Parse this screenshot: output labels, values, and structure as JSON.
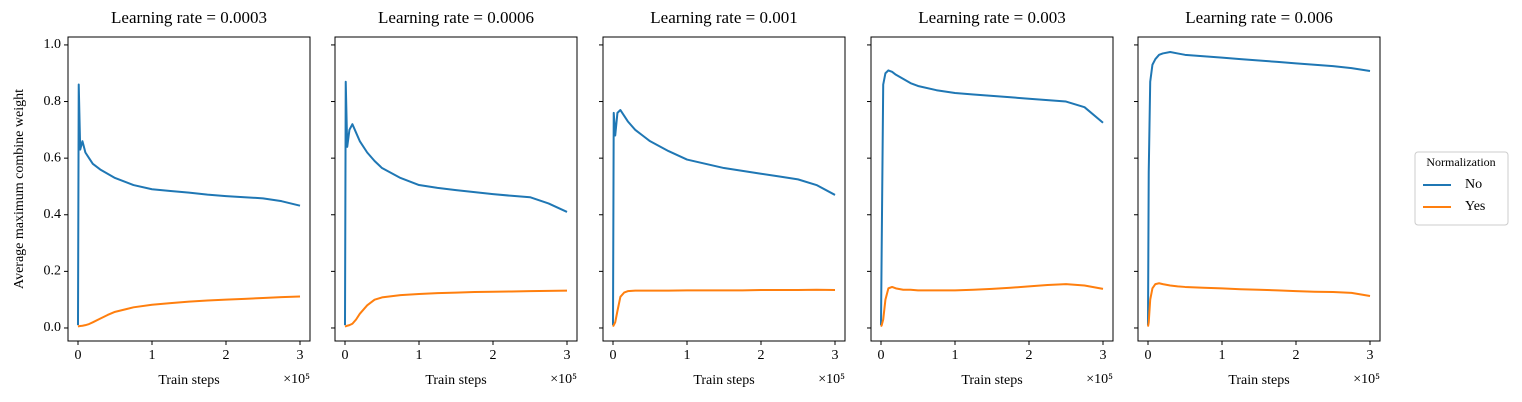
{
  "chart_data": [
    {
      "type": "line",
      "title": "Learning rate = 0.0003",
      "xlabel": "Train steps",
      "xoffset": "×10⁵",
      "ylabel": "Average maximum combine weight",
      "x": [
        0,
        0.01,
        0.03,
        0.06,
        0.1,
        0.15,
        0.2,
        0.3,
        0.4,
        0.5,
        0.75,
        1,
        1.25,
        1.5,
        1.75,
        2,
        2.25,
        2.5,
        2.75,
        3
      ],
      "series": [
        {
          "name": "No",
          "color": "#1f77b4",
          "values": [
            0.01,
            0.86,
            0.63,
            0.66,
            0.62,
            0.6,
            0.58,
            0.56,
            0.545,
            0.53,
            0.505,
            0.49,
            0.484,
            0.478,
            0.471,
            0.466,
            0.462,
            0.458,
            0.448,
            0.432
          ]
        },
        {
          "name": "Yes",
          "color": "#ff7f0e",
          "values": [
            0.005,
            0.006,
            0.007,
            0.008,
            0.01,
            0.014,
            0.02,
            0.033,
            0.046,
            0.057,
            0.073,
            0.082,
            0.088,
            0.093,
            0.097,
            0.1,
            0.103,
            0.106,
            0.109,
            0.111
          ]
        }
      ],
      "xlim": [
        -0.135,
        3.135
      ],
      "xticks": [
        0,
        1,
        2,
        3
      ],
      "ylim": [
        -0.046,
        1.028
      ],
      "yticks": [
        {
          "value": 0,
          "label": "0.0"
        },
        0.2,
        0.4,
        0.6,
        0.8,
        {
          "value": 1,
          "label": "1.0"
        }
      ]
    },
    {
      "type": "line",
      "title": "Learning rate = 0.0006",
      "xlabel": "Train steps",
      "xoffset": "×10⁵",
      "x": [
        0,
        0.01,
        0.03,
        0.06,
        0.1,
        0.15,
        0.2,
        0.3,
        0.4,
        0.5,
        0.75,
        1,
        1.25,
        1.5,
        1.75,
        2,
        2.25,
        2.5,
        2.75,
        3
      ],
      "series": [
        {
          "name": "No",
          "color": "#1f77b4",
          "values": [
            0.01,
            0.87,
            0.64,
            0.7,
            0.72,
            0.69,
            0.66,
            0.62,
            0.59,
            0.565,
            0.53,
            0.505,
            0.495,
            0.487,
            0.48,
            0.473,
            0.467,
            0.462,
            0.44,
            0.41
          ]
        },
        {
          "name": "Yes",
          "color": "#ff7f0e",
          "values": [
            0.005,
            0.006,
            0.008,
            0.01,
            0.015,
            0.03,
            0.05,
            0.08,
            0.1,
            0.108,
            0.116,
            0.12,
            0.123,
            0.125,
            0.127,
            0.128,
            0.129,
            0.13,
            0.131,
            0.132
          ]
        }
      ],
      "xlim": [
        -0.135,
        3.135
      ],
      "xticks": [
        0,
        1,
        2,
        3
      ],
      "ylim": [
        -0.046,
        1.028
      ],
      "yticks": [
        0,
        0.2,
        0.4,
        0.6,
        0.8,
        1
      ]
    },
    {
      "type": "line",
      "title": "Learning rate = 0.001",
      "xlabel": "Train steps",
      "xoffset": "×10⁵",
      "x": [
        0,
        0.01,
        0.03,
        0.06,
        0.1,
        0.15,
        0.2,
        0.3,
        0.4,
        0.5,
        0.75,
        1,
        1.25,
        1.5,
        1.75,
        2,
        2.25,
        2.5,
        2.75,
        3
      ],
      "series": [
        {
          "name": "No",
          "color": "#1f77b4",
          "values": [
            0.01,
            0.76,
            0.68,
            0.76,
            0.77,
            0.75,
            0.73,
            0.7,
            0.68,
            0.66,
            0.625,
            0.595,
            0.58,
            0.565,
            0.555,
            0.545,
            0.535,
            0.525,
            0.505,
            0.47
          ]
        },
        {
          "name": "Yes",
          "color": "#ff7f0e",
          "values": [
            0.005,
            0.01,
            0.02,
            0.06,
            0.11,
            0.125,
            0.13,
            0.132,
            0.132,
            0.132,
            0.132,
            0.133,
            0.133,
            0.133,
            0.133,
            0.134,
            0.134,
            0.134,
            0.135,
            0.134
          ]
        }
      ],
      "xlim": [
        -0.135,
        3.135
      ],
      "xticks": [
        0,
        1,
        2,
        3
      ],
      "ylim": [
        -0.046,
        1.028
      ],
      "yticks": [
        0,
        0.2,
        0.4,
        0.6,
        0.8,
        1
      ]
    },
    {
      "type": "line",
      "title": "Learning rate = 0.003",
      "xlabel": "Train steps",
      "xoffset": "×10⁵",
      "x": [
        0,
        0.01,
        0.03,
        0.06,
        0.1,
        0.15,
        0.2,
        0.3,
        0.4,
        0.5,
        0.75,
        1,
        1.25,
        1.5,
        1.75,
        2,
        2.25,
        2.5,
        2.75,
        3
      ],
      "series": [
        {
          "name": "No",
          "color": "#1f77b4",
          "values": [
            0.01,
            0.3,
            0.86,
            0.9,
            0.91,
            0.905,
            0.895,
            0.88,
            0.865,
            0.855,
            0.84,
            0.83,
            0.825,
            0.82,
            0.815,
            0.81,
            0.805,
            0.8,
            0.78,
            0.725
          ]
        },
        {
          "name": "Yes",
          "color": "#ff7f0e",
          "values": [
            0.005,
            0.01,
            0.03,
            0.1,
            0.14,
            0.145,
            0.14,
            0.135,
            0.135,
            0.133,
            0.133,
            0.133,
            0.135,
            0.138,
            0.142,
            0.147,
            0.152,
            0.155,
            0.15,
            0.138
          ]
        }
      ],
      "xlim": [
        -0.135,
        3.135
      ],
      "xticks": [
        0,
        1,
        2,
        3
      ],
      "ylim": [
        -0.046,
        1.028
      ],
      "yticks": [
        0,
        0.2,
        0.4,
        0.6,
        0.8,
        1
      ]
    },
    {
      "type": "line",
      "title": "Learning rate = 0.006",
      "xlabel": "Train steps",
      "xoffset": "×10⁵",
      "x": [
        0,
        0.01,
        0.03,
        0.06,
        0.1,
        0.15,
        0.2,
        0.3,
        0.4,
        0.5,
        0.75,
        1,
        1.25,
        1.5,
        1.75,
        2,
        2.25,
        2.5,
        2.75,
        3
      ],
      "series": [
        {
          "name": "No",
          "color": "#1f77b4",
          "values": [
            0.01,
            0.55,
            0.87,
            0.93,
            0.95,
            0.965,
            0.97,
            0.975,
            0.97,
            0.965,
            0.96,
            0.955,
            0.95,
            0.945,
            0.94,
            0.935,
            0.93,
            0.925,
            0.918,
            0.908
          ]
        },
        {
          "name": "Yes",
          "color": "#ff7f0e",
          "values": [
            0.005,
            0.02,
            0.1,
            0.14,
            0.155,
            0.158,
            0.155,
            0.15,
            0.147,
            0.145,
            0.142,
            0.14,
            0.137,
            0.135,
            0.133,
            0.13,
            0.128,
            0.127,
            0.124,
            0.113
          ]
        }
      ],
      "xlim": [
        -0.135,
        3.135
      ],
      "xticks": [
        0,
        1,
        2,
        3
      ],
      "ylim": [
        -0.046,
        1.028
      ],
      "yticks": [
        0,
        0.2,
        0.4,
        0.6,
        0.8,
        1
      ],
      "legend": "right",
      "legend_title": "Normalization"
    }
  ]
}
